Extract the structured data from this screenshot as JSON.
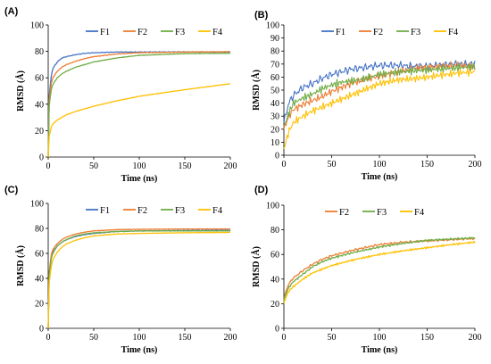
{
  "chart_data": [
    {
      "type": "line",
      "panel_label": "(A)",
      "xlabel": "Time (ns)",
      "ylabel": "RMSD (Å)",
      "xlim": [
        0,
        200
      ],
      "ylim": [
        0,
        100
      ],
      "xticks": [
        "0",
        "50",
        "100",
        "150",
        "200"
      ],
      "yticks": [
        "0",
        "20",
        "40",
        "60",
        "80",
        "100"
      ],
      "legend": "top",
      "grid": false,
      "series": [
        {
          "name": "F1",
          "color": "#4472c4",
          "x": [
            0,
            1,
            3,
            5,
            10,
            15,
            20,
            30,
            40,
            50,
            75,
            100,
            150,
            200
          ],
          "y": [
            0,
            45,
            60,
            67,
            72,
            75,
            76,
            77.5,
            78.5,
            79,
            79.5,
            79.5,
            79.6,
            79.6
          ]
        },
        {
          "name": "F2",
          "color": "#ed7d31",
          "x": [
            0,
            1,
            3,
            5,
            10,
            15,
            20,
            30,
            40,
            50,
            75,
            100,
            150,
            200
          ],
          "y": [
            0,
            42,
            55,
            60,
            65,
            68,
            70,
            72.5,
            74.5,
            76,
            78,
            79,
            79.5,
            79.8
          ]
        },
        {
          "name": "F3",
          "color": "#70ad47",
          "x": [
            0,
            1,
            3,
            5,
            10,
            15,
            20,
            30,
            40,
            50,
            75,
            100,
            150,
            200
          ],
          "y": [
            0,
            38,
            50,
            55,
            60,
            63,
            65,
            68,
            70,
            72,
            75,
            77,
            78.3,
            78.6
          ]
        },
        {
          "name": "F4",
          "color": "#ffc000",
          "x": [
            0,
            1,
            3,
            5,
            10,
            15,
            20,
            30,
            40,
            50,
            75,
            100,
            150,
            200
          ],
          "y": [
            0,
            15,
            22,
            25,
            28,
            30,
            32,
            34.5,
            36.5,
            38.5,
            42.5,
            46,
            51,
            55.5
          ]
        }
      ]
    },
    {
      "type": "line",
      "panel_label": "(B)",
      "xlabel": "Time (ns)",
      "ylabel": "RMSD (Å)",
      "xlim": [
        0,
        200
      ],
      "ylim": [
        0,
        100
      ],
      "xticks": [
        "0",
        "50",
        "100",
        "150",
        "200"
      ],
      "yticks": [
        "0",
        "10",
        "20",
        "30",
        "40",
        "50",
        "60",
        "70",
        "80",
        "90",
        "100"
      ],
      "legend": "top",
      "grid": false,
      "series": [
        {
          "name": "F1",
          "color": "#4472c4",
          "x": [
            0,
            5,
            10,
            20,
            30,
            40,
            50,
            60,
            70,
            80,
            90,
            100,
            120,
            140,
            160,
            180,
            200
          ],
          "y": [
            25,
            40,
            46,
            52,
            55,
            59,
            62,
            64,
            66,
            67,
            68,
            69,
            69,
            68,
            69,
            70,
            70
          ]
        },
        {
          "name": "F2",
          "color": "#ed7d31",
          "x": [
            0,
            5,
            10,
            20,
            30,
            40,
            50,
            60,
            70,
            80,
            90,
            100,
            120,
            140,
            160,
            180,
            200
          ],
          "y": [
            20,
            30,
            35,
            39,
            42,
            45,
            49,
            52,
            55,
            57,
            59,
            61,
            64,
            67,
            68,
            69,
            68
          ]
        },
        {
          "name": "F3",
          "color": "#70ad47",
          "x": [
            0,
            5,
            10,
            20,
            30,
            40,
            50,
            60,
            70,
            80,
            90,
            100,
            120,
            140,
            160,
            180,
            200
          ],
          "y": [
            22,
            32,
            40,
            44,
            47,
            51,
            54,
            56,
            57,
            58,
            60,
            62,
            64,
            65,
            66,
            67,
            68
          ]
        },
        {
          "name": "F4",
          "color": "#ffc000",
          "x": [
            0,
            5,
            10,
            20,
            30,
            40,
            50,
            60,
            70,
            80,
            90,
            100,
            120,
            140,
            160,
            180,
            200
          ],
          "y": [
            5,
            18,
            25,
            30,
            34,
            37,
            40,
            43,
            46,
            49,
            52,
            55,
            58,
            59,
            61,
            63,
            64
          ]
        }
      ]
    },
    {
      "type": "line",
      "panel_label": "(C)",
      "xlabel": "Time (ns)",
      "ylabel": "RMSD (Å)",
      "xlim": [
        0,
        200
      ],
      "ylim": [
        0,
        100
      ],
      "xticks": [
        "0",
        "50",
        "100",
        "150",
        "200"
      ],
      "yticks": [
        "0",
        "20",
        "40",
        "60",
        "80",
        "100"
      ],
      "legend": "top",
      "grid": false,
      "series": [
        {
          "name": "F1",
          "color": "#4472c4",
          "x": [
            0,
            1,
            3,
            5,
            10,
            15,
            20,
            30,
            40,
            50,
            75,
            100,
            150,
            200
          ],
          "y": [
            0,
            40,
            55,
            61,
            66,
            69,
            71,
            73.5,
            75,
            76,
            77.5,
            78,
            78.3,
            78.5
          ]
        },
        {
          "name": "F2",
          "color": "#ed7d31",
          "x": [
            0,
            1,
            3,
            5,
            10,
            15,
            20,
            30,
            40,
            50,
            75,
            100,
            150,
            200
          ],
          "y": [
            0,
            44,
            58,
            63,
            68,
            71,
            73,
            75.5,
            77,
            78,
            79,
            79.3,
            79.5,
            79.5
          ]
        },
        {
          "name": "F3",
          "color": "#70ad47",
          "x": [
            0,
            1,
            3,
            5,
            10,
            15,
            20,
            30,
            40,
            50,
            75,
            100,
            150,
            200
          ],
          "y": [
            0,
            42,
            55,
            60,
            66,
            69,
            71,
            74,
            75.5,
            76.5,
            77.5,
            78,
            78,
            78
          ]
        },
        {
          "name": "F4",
          "color": "#ffc000",
          "x": [
            0,
            1,
            3,
            5,
            10,
            15,
            20,
            30,
            40,
            50,
            75,
            100,
            150,
            200
          ],
          "y": [
            0,
            36,
            48,
            55,
            61,
            65,
            67.5,
            70.5,
            72.5,
            74,
            75.5,
            76,
            76.5,
            76.8
          ]
        }
      ]
    },
    {
      "type": "line",
      "panel_label": "(D)",
      "xlabel": "Time (ns)",
      "ylabel": "RMSD (Å)",
      "xlim": [
        0,
        200
      ],
      "ylim": [
        0,
        100
      ],
      "xticks": [
        "0",
        "50",
        "100",
        "150",
        "200"
      ],
      "yticks": [
        "0",
        "20",
        "40",
        "60",
        "80",
        "100"
      ],
      "legend": "top",
      "grid": false,
      "series": [
        {
          "name": "F2",
          "color": "#ed7d31",
          "x": [
            0,
            2,
            5,
            10,
            20,
            30,
            40,
            50,
            75,
            100,
            125,
            150,
            175,
            200
          ],
          "y": [
            22,
            30,
            36,
            41,
            47,
            52,
            56,
            59,
            64,
            68,
            70,
            71,
            72,
            73
          ]
        },
        {
          "name": "F3",
          "color": "#70ad47",
          "x": [
            0,
            2,
            5,
            10,
            20,
            30,
            40,
            50,
            75,
            100,
            125,
            150,
            175,
            200
          ],
          "y": [
            22,
            28,
            33,
            38,
            44,
            50,
            54,
            57,
            62,
            66,
            69,
            71.5,
            72.5,
            73.5
          ]
        },
        {
          "name": "F4",
          "color": "#ffc000",
          "x": [
            0,
            2,
            5,
            10,
            20,
            30,
            40,
            50,
            75,
            100,
            125,
            150,
            175,
            200
          ],
          "y": [
            20,
            25,
            30,
            34,
            40,
            45,
            48,
            51,
            56,
            60,
            63,
            65.5,
            68,
            70
          ]
        }
      ]
    }
  ]
}
